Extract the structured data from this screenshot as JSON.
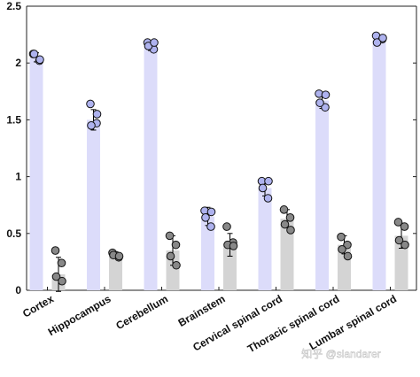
{
  "chart_data": {
    "type": "bar",
    "title": "",
    "xlabel": "",
    "ylabel": "",
    "ylim": [
      0,
      2.5
    ],
    "yticks": [
      0,
      0.5,
      1,
      1.5,
      2,
      2.5
    ],
    "ytick_labels": [
      "0",
      "0.5",
      "1",
      "1.5",
      "2",
      "2.5"
    ],
    "grid": false,
    "legend": "none",
    "categories": [
      "Cortex",
      "Hippocampus",
      "Cerebellum",
      "Brainstem",
      "Cervical spinal cord",
      "Thoracic spinal cord",
      "Lumbar spinal cord"
    ],
    "series": [
      {
        "values": [
          2.05,
          1.5,
          2.15,
          0.65,
          0.9,
          1.67,
          2.21
        ],
        "errors": [
          0.04,
          0.09,
          0.04,
          0.08,
          0.07,
          0.07,
          0.03
        ],
        "points": [
          [
            2.08,
            2.02,
            2.08,
            2.03
          ],
          [
            1.64,
            1.47,
            1.45,
            1.55
          ],
          [
            2.18,
            2.12,
            2.15,
            2.18
          ],
          [
            0.7,
            0.56,
            0.64,
            0.69
          ],
          [
            0.96,
            0.81,
            0.9,
            0.96
          ],
          [
            1.73,
            1.61,
            1.65,
            1.72
          ],
          [
            2.24,
            2.21,
            2.18,
            2.22
          ]
        ],
        "bar_color": "#dcdcfa",
        "marker_color": "#aeb2ee"
      },
      {
        "values": [
          0.14,
          0.31,
          0.35,
          0.4,
          0.63,
          0.4,
          0.48
        ],
        "errors": [
          0.15,
          0.03,
          0.13,
          0.1,
          0.08,
          0.08,
          0.11
        ],
        "points": [
          [
            0.35,
            0.24,
            0.12,
            0.08
          ],
          [
            0.33,
            0.29,
            0.31,
            0.3
          ],
          [
            0.48,
            0.4,
            0.3,
            0.22
          ],
          [
            0.56,
            0.42,
            0.4,
            0.39
          ],
          [
            0.71,
            0.64,
            0.58,
            0.53
          ],
          [
            0.47,
            0.4,
            0.36,
            0.3
          ],
          [
            0.6,
            0.56,
            0.44,
            0.4
          ]
        ],
        "bar_color": "#d4d4d4",
        "marker_color": "#888888"
      }
    ]
  },
  "watermark": "知乎 @slandarer"
}
